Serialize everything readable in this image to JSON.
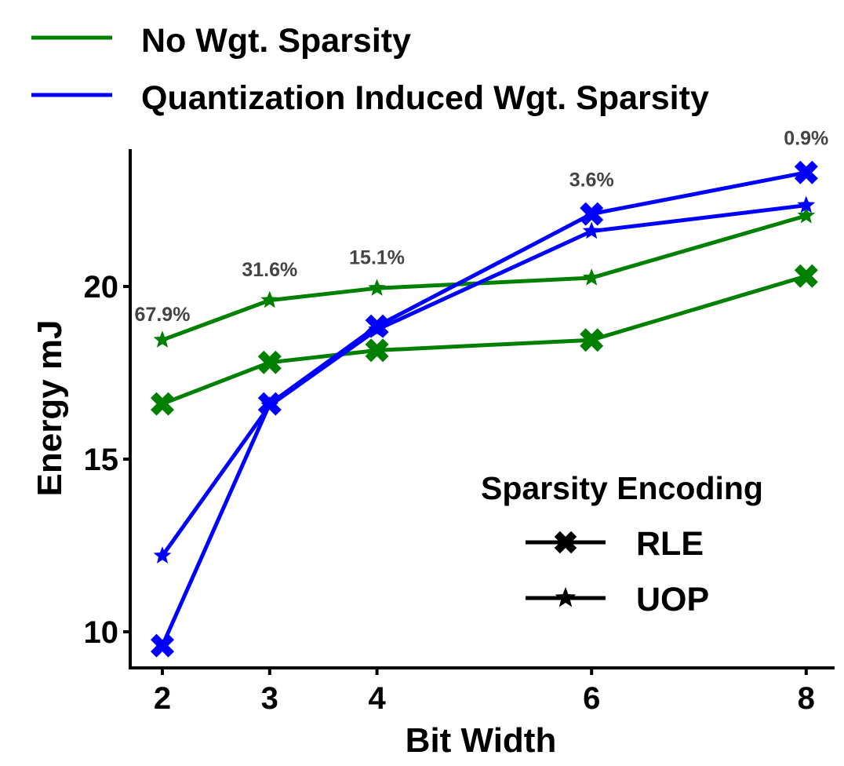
{
  "chart_data": {
    "type": "line",
    "title": "",
    "xlabel": "Bit Width",
    "ylabel": "Energy mJ",
    "x": [
      2,
      3,
      4,
      6,
      8
    ],
    "x_ticks": [
      "2",
      "3",
      "4",
      "6",
      "8"
    ],
    "y_ticks": [
      "10",
      "15",
      "20"
    ],
    "xlim": [
      1.7,
      8.3
    ],
    "ylim": [
      9.0,
      24.0
    ],
    "grid": false,
    "series": [
      {
        "name": "No Wgt. Sparsity — RLE",
        "color_group": "No Wgt. Sparsity",
        "encoding": "RLE",
        "values": [
          16.6,
          17.8,
          18.15,
          18.45,
          20.3
        ]
      },
      {
        "name": "No Wgt. Sparsity — UOP",
        "color_group": "No Wgt. Sparsity",
        "encoding": "UOP",
        "values": [
          18.45,
          19.6,
          19.95,
          20.25,
          22.05
        ]
      },
      {
        "name": "Quantization Induced Wgt. Sparsity — RLE",
        "color_group": "Quantization Induced Wgt. Sparsity",
        "encoding": "RLE",
        "values": [
          9.6,
          16.6,
          18.85,
          22.1,
          23.3
        ]
      },
      {
        "name": "Quantization Induced Wgt. Sparsity — UOP",
        "color_group": "Quantization Induced Wgt. Sparsity",
        "encoding": "UOP",
        "values": [
          12.2,
          16.55,
          18.75,
          21.6,
          22.35
        ]
      }
    ],
    "annotations": [
      {
        "x": 2,
        "y": 19.0,
        "text": "67.9%"
      },
      {
        "x": 3,
        "y": 20.3,
        "text": "31.6%"
      },
      {
        "x": 4,
        "y": 20.65,
        "text": "15.1%"
      },
      {
        "x": 6,
        "y": 22.9,
        "text": "3.6%"
      },
      {
        "x": 8,
        "y": 24.1,
        "text": "0.9%"
      }
    ],
    "color_legend": [
      {
        "label": "No Wgt. Sparsity",
        "color": "#008000"
      },
      {
        "label": "Quantization Induced Wgt. Sparsity",
        "color": "#0000FF"
      }
    ],
    "shape_legend": {
      "title": "Sparsity Encoding",
      "items": [
        {
          "label": "RLE",
          "shape": "x-marker-icon"
        },
        {
          "label": "UOP",
          "shape": "star-marker-icon"
        }
      ]
    },
    "legend_position": "top"
  }
}
